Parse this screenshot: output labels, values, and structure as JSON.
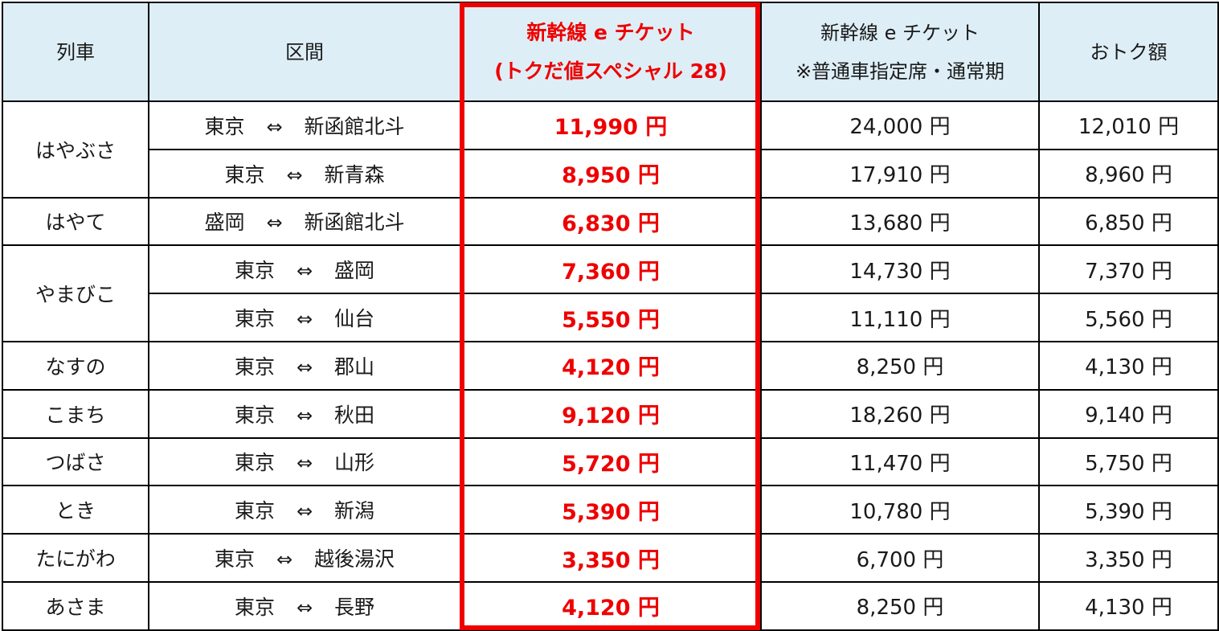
{
  "header": {
    "train": "列車",
    "section": "区間",
    "special_line1": "新幹線 e チケット",
    "special_line2": "(トクだ値スペシャル 28)",
    "normal_line1": "新幹線 e チケット",
    "normal_line2": "※普通車指定席・通常期",
    "saving": "おトク額"
  },
  "arrow_symbol": "⇔",
  "colors": {
    "highlight": "#ee0000",
    "header_bg": "#ddeef6",
    "border": "#000000"
  },
  "rows": [
    {
      "train": "はやぶさ",
      "from": "東京",
      "to": "新函館北斗",
      "special": "11,990 円",
      "normal": "24,000 円",
      "saving": "12,010 円"
    },
    {
      "train": "",
      "from": "東京",
      "to": "新青森",
      "special": "8,950 円",
      "normal": "17,910 円",
      "saving": "8,960 円"
    },
    {
      "train": "はやて",
      "from": "盛岡",
      "to": "新函館北斗",
      "special": "6,830 円",
      "normal": "13,680 円",
      "saving": "6,850 円"
    },
    {
      "train": "やまびこ",
      "from": "東京",
      "to": "盛岡",
      "special": "7,360 円",
      "normal": "14,730 円",
      "saving": "7,370 円"
    },
    {
      "train": "",
      "from": "東京",
      "to": "仙台",
      "special": "5,550 円",
      "normal": "11,110 円",
      "saving": "5,560 円"
    },
    {
      "train": "なすの",
      "from": "東京",
      "to": "郡山",
      "special": "4,120 円",
      "normal": "8,250 円",
      "saving": "4,130 円"
    },
    {
      "train": "こまち",
      "from": "東京",
      "to": "秋田",
      "special": "9,120 円",
      "normal": "18,260 円",
      "saving": "9,140 円"
    },
    {
      "train": "つばさ",
      "from": "東京",
      "to": "山形",
      "special": "5,720 円",
      "normal": "11,470 円",
      "saving": "5,750 円"
    },
    {
      "train": "とき",
      "from": "東京",
      "to": "新潟",
      "special": "5,390 円",
      "normal": "10,780 円",
      "saving": "5,390 円"
    },
    {
      "train": "たにがわ",
      "from": "東京",
      "to": "越後湯沢",
      "special": "3,350 円",
      "normal": "6,700 円",
      "saving": "3,350 円"
    },
    {
      "train": "あさま",
      "from": "東京",
      "to": "長野",
      "special": "4,120 円",
      "normal": "8,250 円",
      "saving": "4,130 円"
    }
  ]
}
